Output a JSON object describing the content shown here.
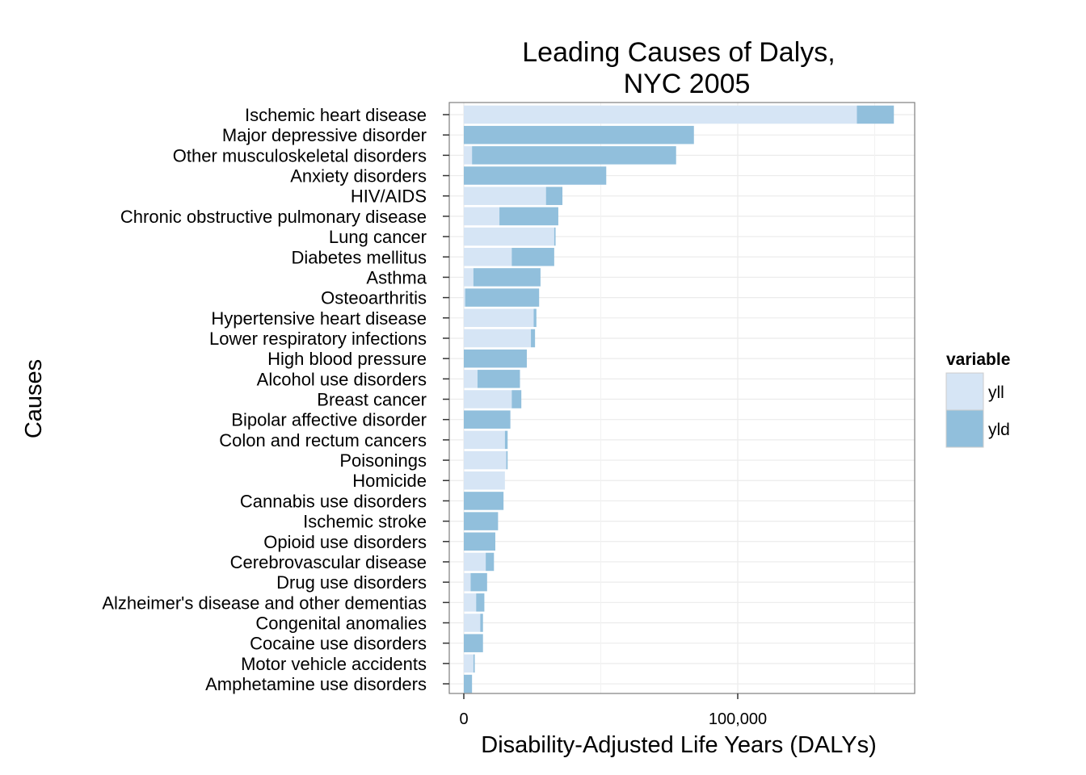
{
  "chart_data": {
    "type": "bar",
    "orientation": "horizontal",
    "stacked": true,
    "title_lines": [
      "Leading Causes of Dalys,",
      "NYC 2005"
    ],
    "xlabel": "Disability-Adjusted Life Years (DALYs)",
    "ylabel": "Causes",
    "xlim": [
      0,
      165000
    ],
    "x_ticks": [
      0,
      100000
    ],
    "x_tick_labels": [
      "0",
      "100,000"
    ],
    "x_minor_gridlines": [
      50000,
      150000
    ],
    "grid": true,
    "legend": {
      "title": "variable",
      "position": "right"
    },
    "categories": [
      "Ischemic heart disease",
      "Major depressive disorder",
      "Other musculoskeletal disorders",
      "Anxiety disorders",
      "HIV/AIDS",
      "Chronic obstructive pulmonary disease",
      "Lung cancer",
      "Diabetes mellitus",
      "Asthma",
      "Osteoarthritis",
      "Hypertensive heart disease",
      "Lower respiratory infections",
      "High blood pressure",
      "Alcohol use disorders",
      "Breast cancer",
      "Bipolar affective disorder",
      "Colon and rectum cancers",
      "Poisonings",
      "Homicide",
      "Cannabis use disorders",
      "Ischemic stroke",
      "Opioid use disorders",
      "Cerebrovascular disease",
      "Drug use disorders",
      "Alzheimer's disease and other dementias",
      "Congenital anomalies",
      "Cocaine use disorders",
      "Motor vehicle accidents",
      "Amphetamine use disorders"
    ],
    "series": [
      {
        "name": "yll",
        "color": "#d6e5f5",
        "values": [
          143500,
          0,
          3000,
          0,
          30000,
          13000,
          33000,
          17500,
          3500,
          500,
          25500,
          24500,
          0,
          5000,
          17500,
          0,
          15000,
          15500,
          15000,
          0,
          0,
          0,
          8000,
          2500,
          4500,
          6000,
          0,
          3500,
          0
        ]
      },
      {
        "name": "yld",
        "color": "#91bfdc",
        "values": [
          13500,
          84000,
          74500,
          52000,
          6000,
          21500,
          500,
          15500,
          24500,
          27000,
          1000,
          1500,
          23000,
          15500,
          3500,
          17000,
          1000,
          500,
          0,
          14500,
          12500,
          11500,
          3000,
          6000,
          3000,
          1000,
          7000,
          500,
          3000
        ]
      }
    ]
  }
}
